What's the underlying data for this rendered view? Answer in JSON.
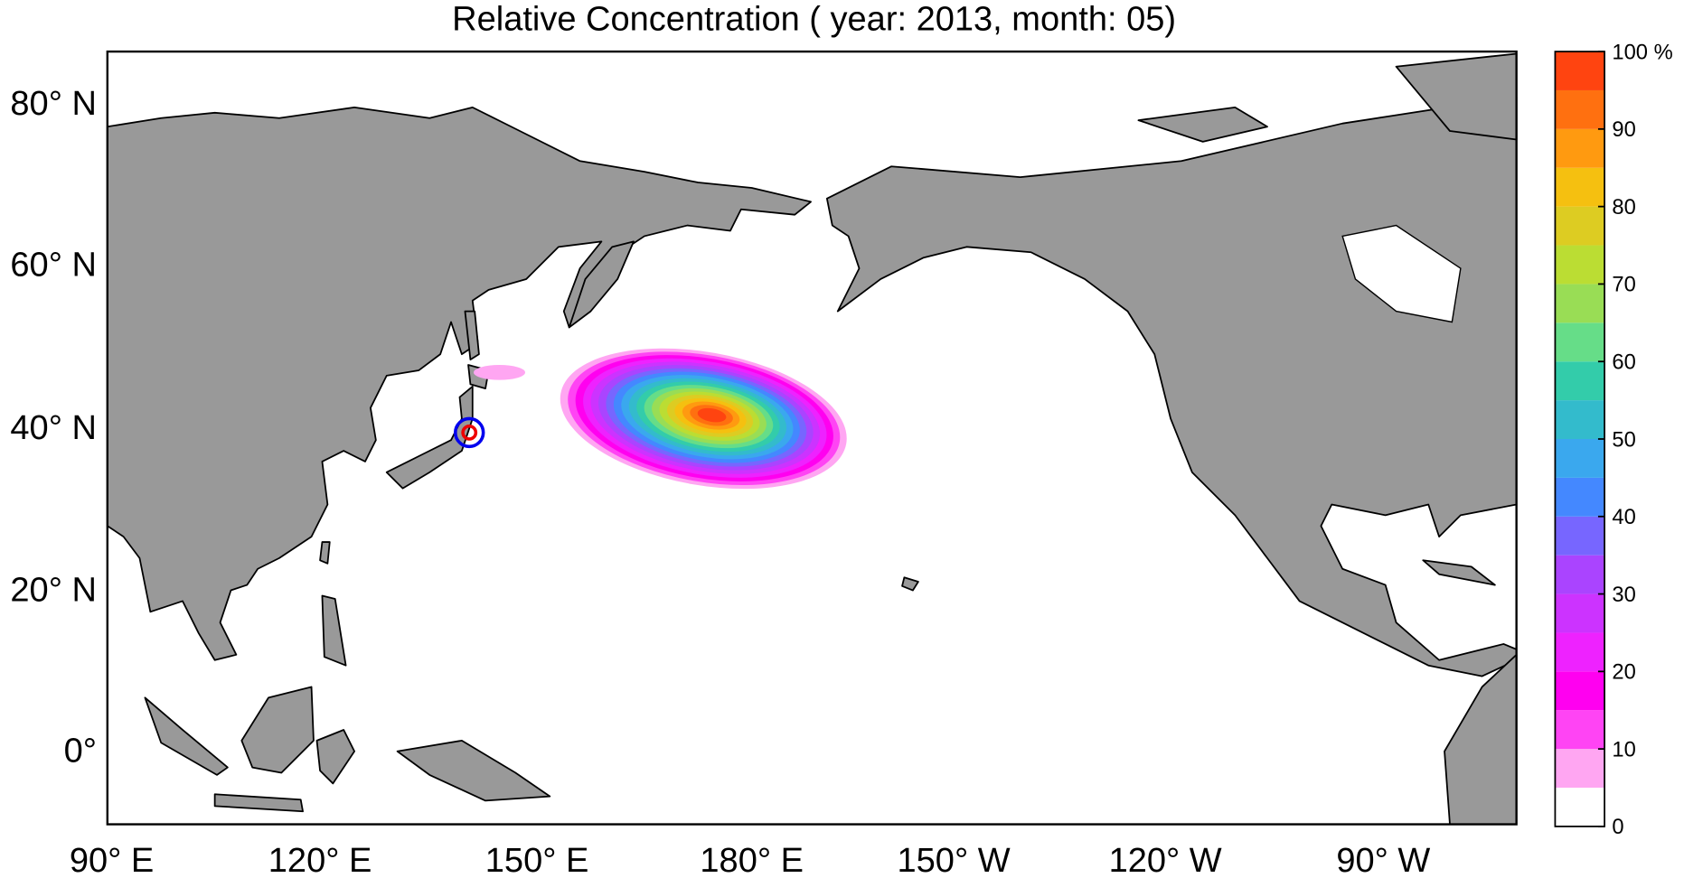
{
  "map": {
    "title": "Relative Concentration ( year: 2013, month: 05)",
    "lat_labels": [
      "80° N",
      "60° N",
      "40° N",
      "20° N",
      "0°"
    ],
    "lon_labels": [
      "90° E",
      "120° E",
      "150° E",
      "180° E",
      "150° W",
      "120° W",
      "90° W"
    ],
    "colorbar": {
      "ticks": [
        0,
        10,
        20,
        30,
        40,
        50,
        60,
        70,
        80,
        90,
        {
          "value": 100,
          "label": "100 %"
        }
      ],
      "colors": [
        "#ffffff",
        "#ffa6f2",
        "#ff44f4",
        "#ff00f0",
        "#ee22ff",
        "#cc33ff",
        "#aa44ff",
        "#7766ff",
        "#4488ff",
        "#3aa8ee",
        "#33bbcc",
        "#33ccaa",
        "#66dd88",
        "#99dd55",
        "#bbdd33",
        "#ddcc22",
        "#f5c010",
        "#ff9a10",
        "#ff7010",
        "#ff4410"
      ]
    }
  }
}
